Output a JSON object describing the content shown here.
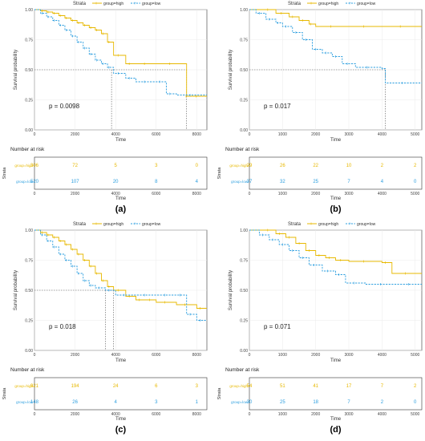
{
  "chart_data": [
    {
      "type": "line",
      "panel_label": "(a)",
      "legend": {
        "title": "Strata",
        "position": "top",
        "entries": [
          "group=high",
          "group=low"
        ]
      },
      "xlabel": "Time",
      "ylabel": "Survival probability",
      "xlim": [
        0,
        8500
      ],
      "ylim": [
        0,
        1
      ],
      "x_ticks": [
        "0",
        "2000",
        "4000",
        "6000",
        "8000"
      ],
      "y_ticks": [
        "0.00",
        "0.25",
        "0.50",
        "0.75",
        "1.00"
      ],
      "p_value": "p = 0.0098",
      "median_times": [
        3800,
        7500
      ],
      "series": [
        {
          "name": "group=high",
          "color": "#E7B800",
          "dash": false,
          "x": [
            0,
            300,
            600,
            900,
            1200,
            1500,
            1800,
            2100,
            2400,
            2700,
            3000,
            3300,
            3600,
            3900,
            4500,
            5000,
            6000,
            7500,
            7600,
            8500
          ],
          "y": [
            1.0,
            0.99,
            0.98,
            0.97,
            0.95,
            0.93,
            0.91,
            0.89,
            0.87,
            0.85,
            0.83,
            0.8,
            0.73,
            0.62,
            0.55,
            0.55,
            0.55,
            0.28,
            0.28,
            0.28
          ]
        },
        {
          "name": "group=low",
          "color": "#2E9FDF",
          "dash": true,
          "x": [
            0,
            300,
            600,
            900,
            1200,
            1500,
            1800,
            2100,
            2400,
            2700,
            3000,
            3300,
            3600,
            3900,
            4500,
            5000,
            6000,
            6500,
            7000,
            8500
          ],
          "y": [
            1.0,
            0.97,
            0.94,
            0.91,
            0.87,
            0.83,
            0.78,
            0.73,
            0.68,
            0.63,
            0.58,
            0.55,
            0.52,
            0.47,
            0.43,
            0.4,
            0.4,
            0.3,
            0.29,
            0.29
          ]
        }
      ],
      "risk_table": {
        "title": "Number at risk",
        "y_title": "Strata",
        "x_ticks": [
          "0",
          "2000",
          "4000",
          "6000",
          "8000"
        ],
        "x_positions": [
          0,
          2000,
          4000,
          6000,
          8000
        ],
        "xlabel": "Time",
        "rows": [
          {
            "name": "group=high",
            "values": [
              "306",
              "72",
              "5",
              "3",
              "0"
            ]
          },
          {
            "name": "group=low",
            "values": [
              "520",
              "107",
              "20",
              "8",
              "4"
            ]
          }
        ]
      }
    },
    {
      "type": "line",
      "panel_label": "(b)",
      "legend": {
        "title": "Strata",
        "position": "top",
        "entries": [
          "group=high",
          "group=low"
        ]
      },
      "xlabel": "Time",
      "ylabel": "Survival probability",
      "xlim": [
        0,
        5200
      ],
      "ylim": [
        0,
        1
      ],
      "x_ticks": [
        "0",
        "1000",
        "2000",
        "3000",
        "4000",
        "5000"
      ],
      "y_ticks": [
        "0.00",
        "0.25",
        "0.50",
        "0.75",
        "1.00"
      ],
      "p_value": "p = 0.017",
      "median_times": [
        4100
      ],
      "series": [
        {
          "name": "group=high",
          "color": "#E7B800",
          "dash": false,
          "x": [
            0,
            400,
            800,
            1200,
            1500,
            1800,
            2000,
            3000,
            4000,
            5200
          ],
          "y": [
            1.0,
            1.0,
            0.97,
            0.94,
            0.91,
            0.88,
            0.86,
            0.86,
            0.86,
            0.86
          ]
        },
        {
          "name": "group=low",
          "color": "#2E9FDF",
          "dash": true,
          "x": [
            0,
            200,
            500,
            800,
            1000,
            1300,
            1600,
            1900,
            2200,
            2500,
            2800,
            3200,
            4000,
            4100,
            5200
          ],
          "y": [
            1.0,
            0.97,
            0.92,
            0.89,
            0.86,
            0.81,
            0.75,
            0.67,
            0.64,
            0.61,
            0.55,
            0.52,
            0.51,
            0.39,
            0.39
          ]
        }
      ],
      "risk_table": {
        "title": "Number at risk",
        "y_title": "Strata",
        "x_ticks": [
          "0",
          "1000",
          "2000",
          "3000",
          "4000",
          "5000"
        ],
        "x_positions": [
          0,
          1000,
          2000,
          3000,
          4000,
          5000
        ],
        "xlabel": "Time",
        "rows": [
          {
            "name": "group=high",
            "values": [
              "29",
              "26",
              "22",
              "10",
              "2",
              "2"
            ]
          },
          {
            "name": "group=low",
            "values": [
              "37",
              "32",
              "25",
              "7",
              "4",
              "0"
            ]
          }
        ]
      }
    },
    {
      "type": "line",
      "panel_label": "(c)",
      "legend": {
        "title": "Strata",
        "position": "top",
        "entries": [
          "group=high",
          "group=low"
        ]
      },
      "xlabel": "Time",
      "ylabel": "Survival probability",
      "xlim": [
        0,
        8500
      ],
      "ylim": [
        0,
        1
      ],
      "x_ticks": [
        "0",
        "2000",
        "4000",
        "6000",
        "8000"
      ],
      "y_ticks": [
        "0.00",
        "0.25",
        "0.50",
        "0.75",
        "1.00"
      ],
      "p_value": "p = 0.018",
      "median_times": [
        3500,
        3900
      ],
      "series": [
        {
          "name": "group=high",
          "color": "#E7B800",
          "dash": false,
          "x": [
            0,
            300,
            600,
            900,
            1200,
            1500,
            1800,
            2100,
            2400,
            2700,
            3000,
            3300,
            3600,
            3900,
            4500,
            5000,
            5500,
            6000,
            7000,
            8000,
            8500
          ],
          "y": [
            1.0,
            0.98,
            0.96,
            0.94,
            0.91,
            0.88,
            0.84,
            0.8,
            0.75,
            0.7,
            0.64,
            0.58,
            0.53,
            0.5,
            0.45,
            0.42,
            0.42,
            0.4,
            0.38,
            0.35,
            0.35
          ]
        },
        {
          "name": "group=low",
          "color": "#2E9FDF",
          "dash": true,
          "x": [
            0,
            300,
            600,
            900,
            1200,
            1500,
            1800,
            2100,
            2400,
            2700,
            3000,
            3500,
            4000,
            5000,
            6000,
            7000,
            7500,
            8000,
            8500
          ],
          "y": [
            1.0,
            0.96,
            0.91,
            0.86,
            0.8,
            0.75,
            0.7,
            0.64,
            0.58,
            0.54,
            0.52,
            0.5,
            0.46,
            0.46,
            0.46,
            0.46,
            0.3,
            0.25,
            0.25
          ]
        }
      ],
      "risk_table": {
        "title": "Number at risk",
        "y_title": "Strata",
        "x_ticks": [
          "0",
          "2000",
          "4000",
          "6000",
          "8000"
        ],
        "x_positions": [
          0,
          2000,
          4000,
          6000,
          8000
        ],
        "xlabel": "Time",
        "rows": [
          {
            "name": "group=high",
            "values": [
              "921",
              "194",
              "24",
              "6",
              "3"
            ]
          },
          {
            "name": "group=low",
            "values": [
              "148",
              "26",
              "4",
              "3",
              "1"
            ]
          }
        ]
      }
    },
    {
      "type": "line",
      "panel_label": "(d)",
      "legend": {
        "title": "Strata",
        "position": "top",
        "entries": [
          "group=high",
          "group=low"
        ]
      },
      "xlabel": "Time",
      "ylabel": "Survival probability",
      "xlim": [
        0,
        5200
      ],
      "ylim": [
        0,
        1
      ],
      "x_ticks": [
        "0",
        "1000",
        "2000",
        "3000",
        "4000",
        "5000"
      ],
      "y_ticks": [
        "0.00",
        "0.25",
        "0.50",
        "0.75",
        "1.00"
      ],
      "p_value": "p = 0.071",
      "median_times": [],
      "series": [
        {
          "name": "group=high",
          "color": "#E7B800",
          "dash": false,
          "x": [
            0,
            400,
            800,
            1100,
            1400,
            1700,
            2000,
            2300,
            2600,
            3000,
            4000,
            4300,
            5200
          ],
          "y": [
            1.0,
            1.0,
            0.97,
            0.94,
            0.89,
            0.83,
            0.79,
            0.77,
            0.75,
            0.74,
            0.73,
            0.64,
            0.64
          ]
        },
        {
          "name": "group=low",
          "color": "#2E9FDF",
          "dash": true,
          "x": [
            0,
            300,
            600,
            900,
            1200,
            1500,
            1800,
            2200,
            2600,
            2900,
            3500,
            4500,
            5200
          ],
          "y": [
            1.0,
            0.96,
            0.92,
            0.88,
            0.83,
            0.77,
            0.71,
            0.66,
            0.63,
            0.56,
            0.55,
            0.55,
            0.55
          ]
        }
      ],
      "risk_table": {
        "title": "Number at risk",
        "y_title": "Strata",
        "x_ticks": [
          "0",
          "1000",
          "2000",
          "3000",
          "4000",
          "5000"
        ],
        "x_positions": [
          0,
          1000,
          2000,
          3000,
          4000,
          5000
        ],
        "xlabel": "Time",
        "rows": [
          {
            "name": "group=high",
            "values": [
              "54",
              "51",
              "41",
              "17",
              "7",
              "2"
            ]
          },
          {
            "name": "group=low",
            "values": [
              "30",
              "25",
              "18",
              "7",
              "2",
              "0"
            ]
          }
        ]
      }
    }
  ]
}
